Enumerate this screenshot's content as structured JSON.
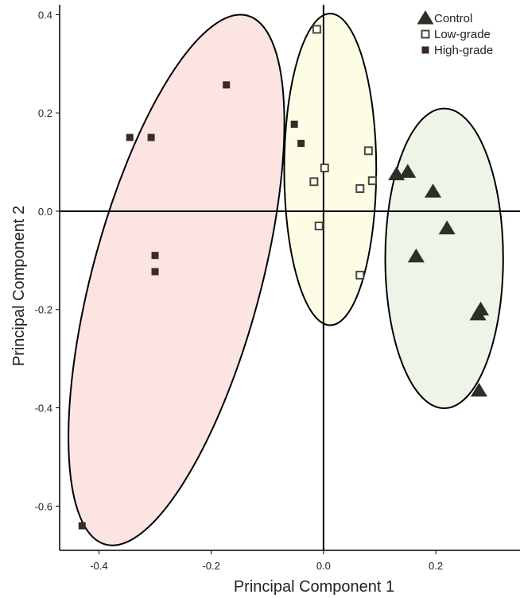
{
  "chart_data": {
    "type": "scatter",
    "title": "",
    "xlabel": "Principal Component 1",
    "ylabel": "Principal Component 2",
    "xlim": [
      -0.47,
      0.35
    ],
    "ylim": [
      -0.69,
      0.42
    ],
    "x_ticks": [
      -0.4,
      -0.2,
      0.0,
      0.2
    ],
    "x_tick_labels": [
      "-0.4",
      "-0.2",
      "0.0",
      "0.2"
    ],
    "y_ticks": [
      0.4,
      0.2,
      0.0,
      -0.2,
      -0.4,
      -0.6
    ],
    "y_tick_labels": [
      "0.4",
      "0.2",
      "0.0",
      "-0.2",
      "-0.4",
      "-0.6"
    ],
    "grid": false,
    "zero_lines": true,
    "legend_position": "top-right",
    "series": [
      {
        "name": "Control",
        "marker": "filled-triangle",
        "color": "#2e2e28",
        "ellipse": {
          "center": [
            0.215,
            -0.096
          ],
          "rx": 0.105,
          "ry": 0.305,
          "angle_deg": 0,
          "fill": "#eef4e8",
          "stroke": "#000000"
        },
        "points": [
          {
            "x": 0.13,
            "y": 0.075
          },
          {
            "x": 0.15,
            "y": 0.08
          },
          {
            "x": 0.195,
            "y": 0.04
          },
          {
            "x": 0.22,
            "y": -0.035
          },
          {
            "x": 0.165,
            "y": -0.092
          },
          {
            "x": 0.28,
            "y": -0.2
          },
          {
            "x": 0.275,
            "y": -0.21
          },
          {
            "x": 0.277,
            "y": -0.365
          }
        ]
      },
      {
        "name": "Low-grade",
        "marker": "open-square",
        "color": "#4a4a3a",
        "ellipse": {
          "center": [
            0.012,
            0.085
          ],
          "rx": 0.082,
          "ry": 0.317,
          "angle_deg": 0,
          "fill": "#fdfde6",
          "stroke": "#000000"
        },
        "points": [
          {
            "x": -0.012,
            "y": 0.37
          },
          {
            "x": 0.08,
            "y": 0.123
          },
          {
            "x": 0.002,
            "y": 0.088
          },
          {
            "x": -0.017,
            "y": 0.06
          },
          {
            "x": 0.087,
            "y": 0.062
          },
          {
            "x": 0.065,
            "y": 0.046
          },
          {
            "x": -0.008,
            "y": -0.03
          },
          {
            "x": 0.065,
            "y": -0.13
          }
        ]
      },
      {
        "name": "High-grade",
        "marker": "filled-square",
        "color": "#3a2a2a",
        "ellipse": {
          "center": [
            -0.262,
            -0.14
          ],
          "rx": 0.15,
          "ry": 0.557,
          "angle_deg": 15,
          "fill": "#fbe4e2",
          "stroke": "#000000"
        },
        "points": [
          {
            "x": -0.173,
            "y": 0.257
          },
          {
            "x": -0.345,
            "y": 0.15
          },
          {
            "x": -0.307,
            "y": 0.15
          },
          {
            "x": -0.3,
            "y": -0.09
          },
          {
            "x": -0.3,
            "y": -0.123
          },
          {
            "x": -0.43,
            "y": -0.64
          },
          {
            "x": -0.052,
            "y": 0.177
          },
          {
            "x": -0.04,
            "y": 0.138
          }
        ]
      }
    ]
  }
}
